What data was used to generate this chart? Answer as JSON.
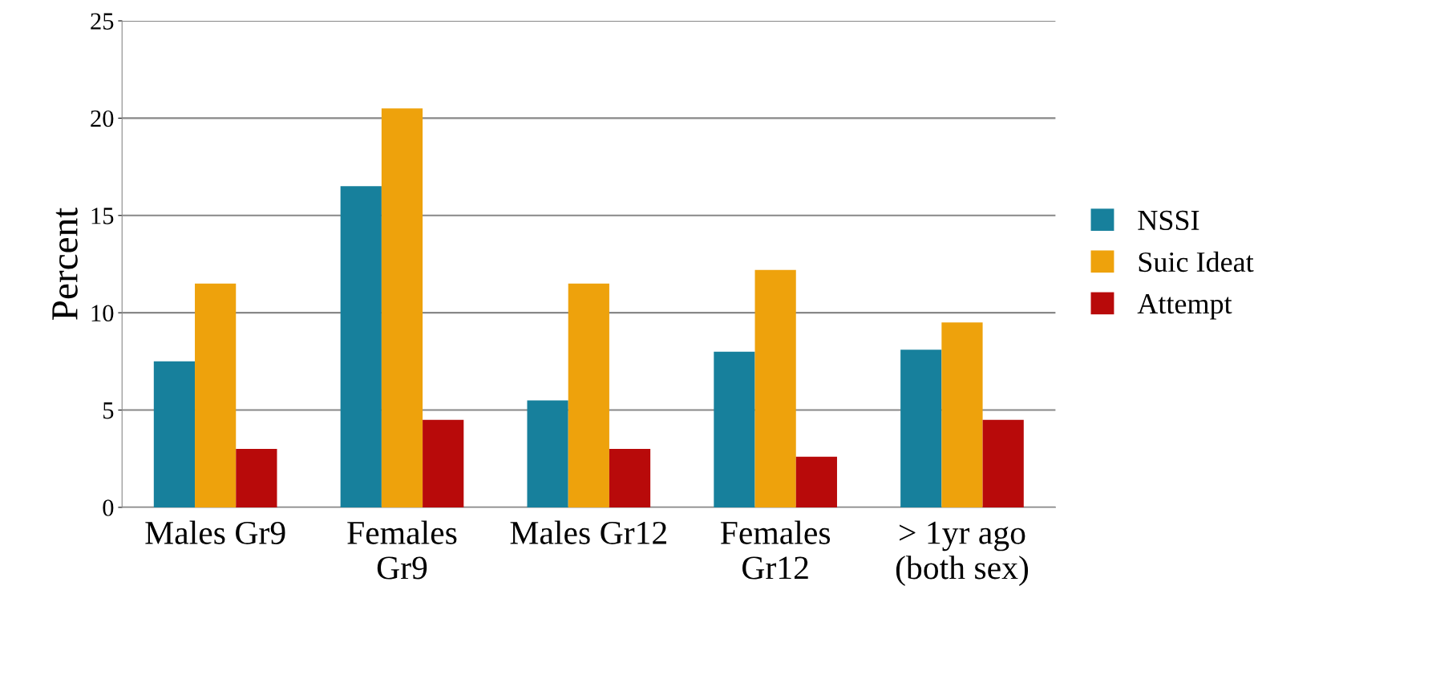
{
  "chart_data": {
    "type": "bar",
    "ylabel": "Percent",
    "categories": [
      "Males Gr9",
      "Females\nGr9",
      "Males Gr12",
      "Females\nGr12",
      "> 1yr ago\n(both sex)"
    ],
    "series": [
      {
        "name": "NSSI",
        "color": "#17809c",
        "values": [
          7.5,
          16.5,
          5.5,
          8.0,
          8.1
        ]
      },
      {
        "name": "Suic Ideat",
        "color": "#eea20c",
        "values": [
          11.5,
          20.5,
          11.5,
          12.2,
          9.5
        ]
      },
      {
        "name": "Attempt",
        "color": "#b80a0a",
        "values": [
          3.0,
          4.5,
          3.0,
          2.6,
          4.5
        ]
      }
    ],
    "ylim": [
      0,
      25
    ],
    "yticks": [
      0,
      5,
      10,
      15,
      20,
      25
    ],
    "grid": "y",
    "legend": "right"
  }
}
